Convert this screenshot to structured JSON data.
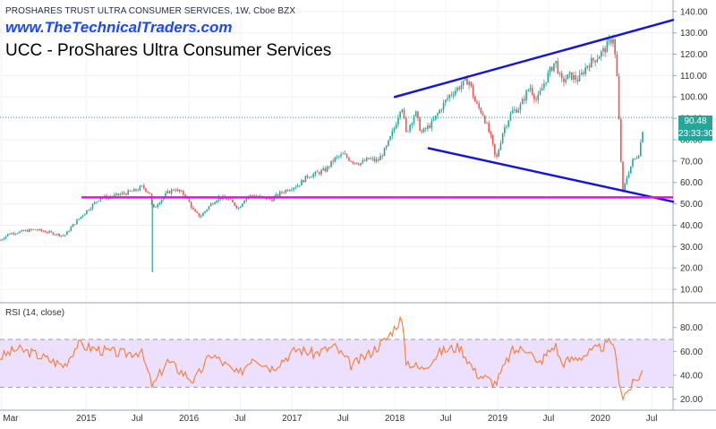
{
  "header": {
    "symbol_line": "PROSHARES TRUST ULTRA CONSUMER SERVICES, 1W, Cboe BZX",
    "website": "www.TheTechnicalTraders.com",
    "subtitle": "UCC - ProShares Ultra Consumer Services"
  },
  "price_tags": {
    "last_price": "90.48",
    "countdown": "23:33:30"
  },
  "colors": {
    "up": "#26a69a",
    "down": "#ef5350",
    "trendline": "#1515d9",
    "support": "#ff00ff",
    "rsi_line": "#f57c36",
    "rsi_band": "#ede0ff",
    "price_line": "#26a69a"
  },
  "chart_data": [
    {
      "type": "candlestick",
      "title": "PROSHARES TRUST ULTRA CONSUMER SERVICES, 1W, Cboe BZX",
      "x_tick_labels": [
        "Mar",
        "2015",
        "Jul",
        "2016",
        "Jul",
        "2017",
        "Jul",
        "2018",
        "Jul",
        "2019",
        "Jul",
        "2020",
        "Jul"
      ],
      "y_ticks": [
        10,
        20,
        30,
        40,
        50,
        60,
        70,
        80,
        90,
        100,
        110,
        120,
        130,
        140
      ],
      "ylim": [
        5,
        142
      ],
      "last_price": 90.48,
      "x_range": [
        "2014-03-01",
        "2020-09-15"
      ],
      "price_path": [
        [
          "2014-03-01",
          33
        ],
        [
          "2014-04-01",
          36
        ],
        [
          "2014-05-15",
          37
        ],
        [
          "2014-07-01",
          38
        ],
        [
          "2014-08-10",
          37
        ],
        [
          "2014-09-10",
          36
        ],
        [
          "2014-10-15",
          35
        ],
        [
          "2014-11-15",
          40
        ],
        [
          "2014-12-20",
          45
        ],
        [
          "2015-01-20",
          49
        ],
        [
          "2015-02-20",
          53
        ],
        [
          "2015-03-20",
          53
        ],
        [
          "2015-04-20",
          54
        ],
        [
          "2015-05-20",
          55
        ],
        [
          "2015-06-20",
          56
        ],
        [
          "2015-07-20",
          58
        ],
        [
          "2015-08-15",
          55
        ],
        [
          "2015-08-25",
          47
        ],
        [
          "2015-09-10",
          50
        ],
        [
          "2015-10-15",
          55
        ],
        [
          "2015-11-10",
          57
        ],
        [
          "2015-12-20",
          54
        ],
        [
          "2016-01-20",
          46
        ],
        [
          "2016-02-10",
          44
        ],
        [
          "2016-03-20",
          50
        ],
        [
          "2016-04-15",
          53
        ],
        [
          "2016-05-20",
          52
        ],
        [
          "2016-06-25",
          48
        ],
        [
          "2016-07-20",
          53
        ],
        [
          "2016-08-15",
          54
        ],
        [
          "2016-09-15",
          53
        ],
        [
          "2016-10-20",
          52
        ],
        [
          "2016-11-20",
          55
        ],
        [
          "2016-12-20",
          57
        ],
        [
          "2017-01-25",
          59
        ],
        [
          "2017-02-25",
          63
        ],
        [
          "2017-03-25",
          64
        ],
        [
          "2017-05-01",
          66
        ],
        [
          "2017-06-01",
          71
        ],
        [
          "2017-07-01",
          73
        ],
        [
          "2017-08-01",
          70
        ],
        [
          "2017-09-01",
          69
        ],
        [
          "2017-10-01",
          71
        ],
        [
          "2017-11-01",
          70
        ],
        [
          "2017-12-01",
          76
        ],
        [
          "2018-01-01",
          86
        ],
        [
          "2018-01-25",
          97
        ],
        [
          "2018-02-10",
          83
        ],
        [
          "2018-03-15",
          93
        ],
        [
          "2018-04-05",
          83
        ],
        [
          "2018-05-15",
          88
        ],
        [
          "2018-06-15",
          95
        ],
        [
          "2018-07-15",
          101
        ],
        [
          "2018-08-20",
          105
        ],
        [
          "2018-09-20",
          108
        ],
        [
          "2018-10-15",
          97
        ],
        [
          "2018-11-10",
          92
        ],
        [
          "2018-12-10",
          80
        ],
        [
          "2018-12-26",
          70
        ],
        [
          "2019-01-20",
          84
        ],
        [
          "2019-02-20",
          93
        ],
        [
          "2019-03-20",
          95
        ],
        [
          "2019-04-25",
          105
        ],
        [
          "2019-05-20",
          98
        ],
        [
          "2019-06-20",
          108
        ],
        [
          "2019-07-25",
          117
        ],
        [
          "2019-08-15",
          107
        ],
        [
          "2019-09-15",
          110
        ],
        [
          "2019-10-15",
          108
        ],
        [
          "2019-11-15",
          115
        ],
        [
          "2019-12-15",
          118
        ],
        [
          "2020-01-15",
          122
        ],
        [
          "2020-02-15",
          128
        ],
        [
          "2020-02-28",
          112
        ],
        [
          "2020-03-10",
          80
        ],
        [
          "2020-03-20",
          55
        ],
        [
          "2020-04-05",
          63
        ],
        [
          "2020-04-25",
          70
        ],
        [
          "2020-05-15",
          73
        ],
        [
          "2020-05-25",
          80
        ],
        [
          "2020-06-05",
          90.48
        ]
      ],
      "annotations": [
        {
          "kind": "trendline",
          "color": "#1515d9",
          "from": [
            "2018-01-01",
            100
          ],
          "to": [
            "2020-09-15",
            136
          ]
        },
        {
          "kind": "trendline",
          "color": "#1515d9",
          "from": [
            "2018-05-01",
            76
          ],
          "to": [
            "2020-09-15",
            51
          ]
        },
        {
          "kind": "horizontal",
          "color": "#ff00ff",
          "from": [
            "2014-12-15",
            53
          ],
          "to": [
            "2020-09-15",
            53
          ]
        },
        {
          "kind": "price_line",
          "color": "#26a69a",
          "value": 90.48,
          "style": "dotted"
        }
      ],
      "spike_low": {
        "date": "2015-08-24",
        "value": 18
      }
    },
    {
      "type": "line",
      "title": "RSI (14, close)",
      "y_ticks": [
        20,
        40,
        60,
        80
      ],
      "ylim": [
        13,
        97
      ],
      "band": [
        30,
        70
      ],
      "series": [
        {
          "values_path": [
            [
              "2014-03-01",
              55
            ],
            [
              "2014-05-01",
              62
            ],
            [
              "2014-07-01",
              58
            ],
            [
              "2014-09-01",
              52
            ],
            [
              "2014-10-15",
              48
            ],
            [
              "2014-12-01",
              66
            ],
            [
              "2015-01-15",
              63
            ],
            [
              "2015-03-15",
              60
            ],
            [
              "2015-05-15",
              58
            ],
            [
              "2015-07-15",
              60
            ],
            [
              "2015-08-25",
              30
            ],
            [
              "2015-10-15",
              52
            ],
            [
              "2016-01-20",
              35
            ],
            [
              "2016-03-20",
              58
            ],
            [
              "2016-06-25",
              40
            ],
            [
              "2016-08-15",
              56
            ],
            [
              "2016-10-20",
              46
            ],
            [
              "2017-01-20",
              62
            ],
            [
              "2017-03-20",
              58
            ],
            [
              "2017-06-01",
              64
            ],
            [
              "2017-08-01",
              48
            ],
            [
              "2017-10-01",
              58
            ],
            [
              "2017-12-01",
              70
            ],
            [
              "2018-01-25",
              88
            ],
            [
              "2018-02-10",
              52
            ],
            [
              "2018-04-05",
              45
            ],
            [
              "2018-06-15",
              60
            ],
            [
              "2018-08-20",
              64
            ],
            [
              "2018-10-15",
              42
            ],
            [
              "2018-12-26",
              33
            ],
            [
              "2019-02-20",
              60
            ],
            [
              "2019-04-25",
              63
            ],
            [
              "2019-05-20",
              48
            ],
            [
              "2019-07-25",
              66
            ],
            [
              "2019-08-15",
              50
            ],
            [
              "2019-11-15",
              58
            ],
            [
              "2020-02-15",
              68
            ],
            [
              "2020-03-01",
              45
            ],
            [
              "2020-03-20",
              22
            ],
            [
              "2020-05-01",
              34
            ],
            [
              "2020-06-05",
              45
            ]
          ]
        }
      ]
    }
  ]
}
